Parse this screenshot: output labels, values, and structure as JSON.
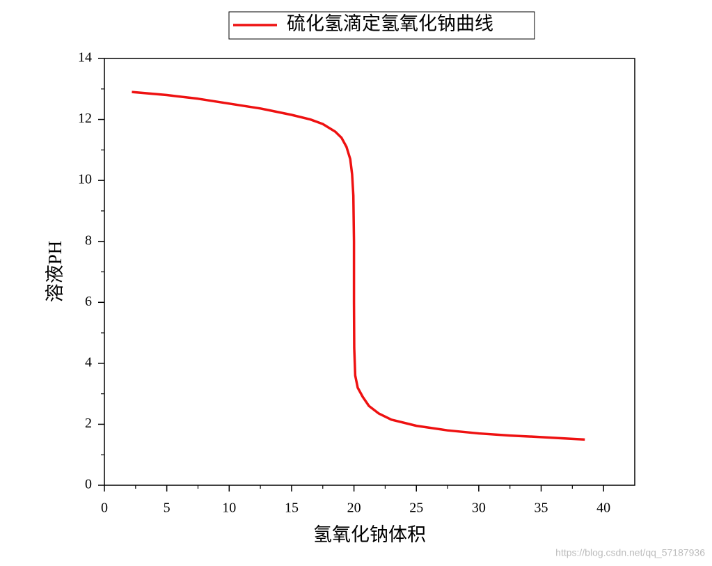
{
  "chart_data": {
    "type": "line",
    "x_label": "氢氧化钠体积",
    "y_label": "溶液PH",
    "x": [
      2.2,
      5,
      7.5,
      10,
      12.5,
      15,
      16.5,
      17.5,
      18.5,
      19,
      19.4,
      19.7,
      19.85,
      19.95,
      20,
      20,
      20.02,
      20.1,
      20.3,
      20.7,
      21.2,
      22,
      23,
      25,
      27.5,
      30,
      32.5,
      35,
      38.5
    ],
    "series": [
      {
        "name": "硫化氢滴定氢氧化钠曲线",
        "color": "#ee1111",
        "values": [
          12.9,
          12.8,
          12.68,
          12.52,
          12.36,
          12.15,
          12.0,
          11.85,
          11.6,
          11.4,
          11.1,
          10.7,
          10.2,
          9.5,
          8,
          6,
          4.5,
          3.6,
          3.2,
          2.9,
          2.6,
          2.35,
          2.15,
          1.95,
          1.8,
          1.7,
          1.63,
          1.58,
          1.5
        ]
      }
    ],
    "xlim": [
      0,
      42.5
    ],
    "ylim": [
      0,
      14
    ],
    "xticks": [
      0,
      5,
      10,
      15,
      20,
      25,
      30,
      35,
      40
    ],
    "yticks": [
      0,
      2,
      4,
      6,
      8,
      10,
      12,
      14
    ],
    "legend": "top",
    "watermark": "https://blog.csdn.net/qq_57187936"
  }
}
